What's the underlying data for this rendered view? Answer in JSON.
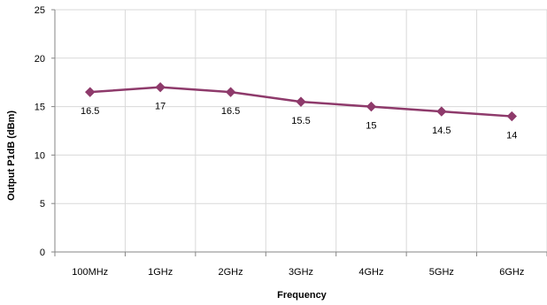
{
  "chart_data": {
    "type": "line",
    "categories": [
      "100MHz",
      "1GHz",
      "2GHz",
      "3GHz",
      "4GHz",
      "5GHz",
      "6GHz"
    ],
    "series": [
      {
        "values": [
          16.5,
          17,
          16.5,
          15.5,
          15,
          14.5,
          14
        ],
        "data_labels": [
          "16.5",
          "17",
          "16.5",
          "15.5",
          "15",
          "14.5",
          "14"
        ],
        "color": "#8e3a6b",
        "marker": "diamond"
      }
    ],
    "xlabel": "Frequency",
    "ylabel": "Output P1dB (dBm)",
    "ylim": [
      0,
      25
    ],
    "yticks": [
      0,
      5,
      10,
      15,
      20,
      25
    ],
    "ytick_labels": [
      "0",
      "5",
      "10",
      "15",
      "20",
      "25"
    ],
    "grid": true,
    "legend": "none",
    "colors": {
      "grid": "#d9d9d9",
      "axis": "#868686"
    }
  }
}
